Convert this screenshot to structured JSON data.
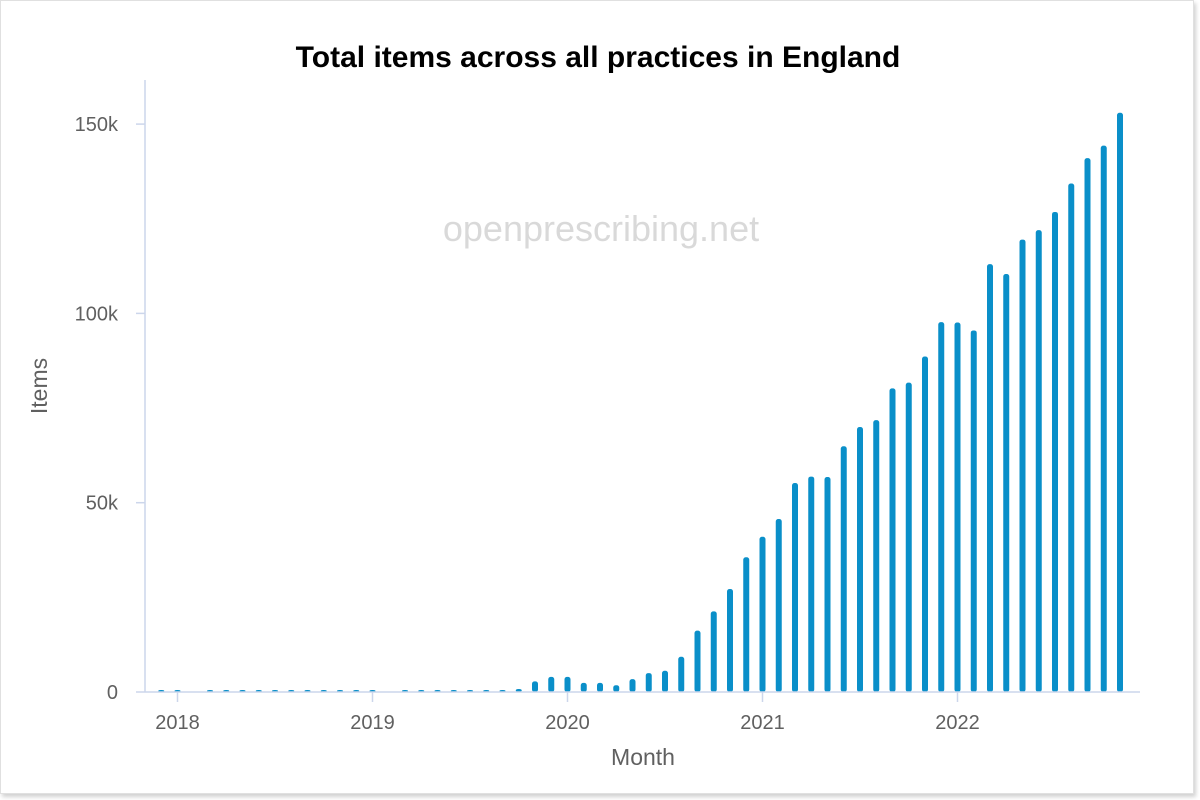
{
  "chart_data": {
    "type": "bar",
    "title": "Total items across all practices in England",
    "xlabel": "Month",
    "ylabel": "Items",
    "watermark": "openprescribing.net",
    "ylim": [
      0,
      160000
    ],
    "yticks": [
      {
        "value": 0,
        "label": "0"
      },
      {
        "value": 50000,
        "label": "50k"
      },
      {
        "value": 100000,
        "label": "100k"
      },
      {
        "value": 150000,
        "label": "150k"
      }
    ],
    "xticks": [
      "2018",
      "2019",
      "2020",
      "2021",
      "2022"
    ],
    "x": [
      "2017-12",
      "2018-01",
      "2018-02",
      "2018-03",
      "2018-04",
      "2018-05",
      "2018-06",
      "2018-07",
      "2018-08",
      "2018-09",
      "2018-10",
      "2018-11",
      "2018-12",
      "2019-01",
      "2019-02",
      "2019-03",
      "2019-04",
      "2019-05",
      "2019-06",
      "2019-07",
      "2019-08",
      "2019-09",
      "2019-10",
      "2019-11",
      "2019-12",
      "2020-01",
      "2020-02",
      "2020-03",
      "2020-04",
      "2020-05",
      "2020-06",
      "2020-07",
      "2020-08",
      "2020-09",
      "2020-10",
      "2020-11",
      "2020-12",
      "2021-01",
      "2021-02",
      "2021-03",
      "2021-04",
      "2021-05",
      "2021-06",
      "2021-07",
      "2021-08",
      "2021-09",
      "2021-10",
      "2021-11",
      "2021-12",
      "2022-01",
      "2022-02",
      "2022-03",
      "2022-04",
      "2022-05",
      "2022-06",
      "2022-07",
      "2022-08",
      "2022-09",
      "2022-10",
      "2022-11"
    ],
    "values": [
      200,
      200,
      0,
      200,
      200,
      200,
      200,
      200,
      200,
      200,
      200,
      200,
      200,
      200,
      0,
      200,
      200,
      200,
      200,
      200,
      200,
      200,
      800,
      2800,
      4000,
      4000,
      2400,
      2400,
      1800,
      3400,
      5000,
      5600,
      9300,
      16200,
      21300,
      27200,
      35600,
      41000,
      45700,
      55200,
      56900,
      56800,
      64900,
      70000,
      71800,
      80200,
      81700,
      88600,
      97700,
      97600,
      95500,
      113000,
      110400,
      119500,
      122000,
      126800,
      134300,
      141000,
      144300,
      153000
    ],
    "bar_color": "#0a8fc9",
    "grid": false,
    "legend": false
  }
}
